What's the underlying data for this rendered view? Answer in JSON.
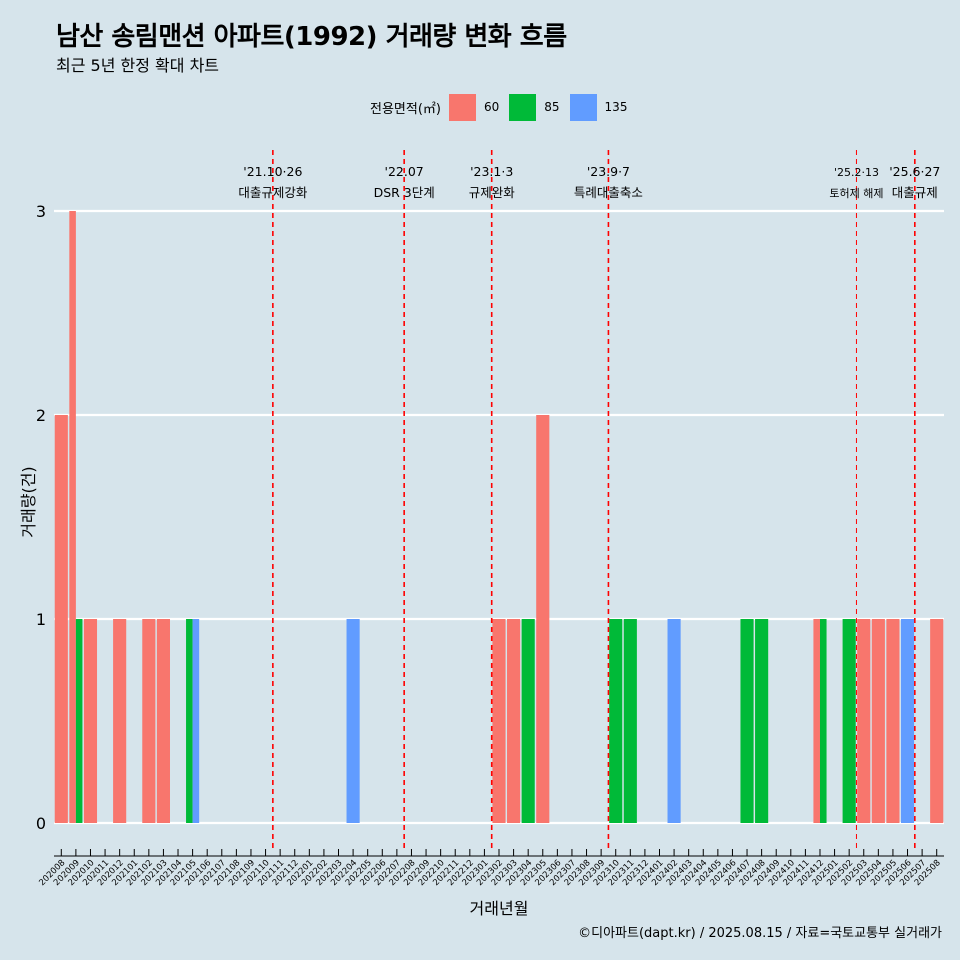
{
  "title": "남산 송림맨션 아파트(1992) 거래량 변화 흐름",
  "subtitle": "최근 5년 한정 확대 차트",
  "caption": "©디아파트(dapt.kr) / 2025.08.15 / 자료=국토교통부 실거래가",
  "legend": {
    "title": "전용면적(㎡)",
    "items": [
      {
        "label": "60",
        "color": "#f8766d"
      },
      {
        "label": "85",
        "color": "#00ba38"
      },
      {
        "label": "135",
        "color": "#619cff"
      }
    ]
  },
  "chart_data": {
    "type": "bar",
    "xlabel": "거래년월",
    "ylabel": "거래량(건)",
    "ylim": [
      0,
      3
    ],
    "yticks": [
      0,
      1,
      2,
      3
    ],
    "categories": [
      "202008",
      "202009",
      "202010",
      "202011",
      "202012",
      "202101",
      "202102",
      "202103",
      "202104",
      "202105",
      "202106",
      "202107",
      "202108",
      "202109",
      "202110",
      "202111",
      "202112",
      "202201",
      "202202",
      "202203",
      "202204",
      "202205",
      "202206",
      "202207",
      "202208",
      "202209",
      "202210",
      "202211",
      "202212",
      "202301",
      "202302",
      "202303",
      "202304",
      "202305",
      "202306",
      "202307",
      "202308",
      "202309",
      "202310",
      "202311",
      "202312",
      "202401",
      "202402",
      "202403",
      "202404",
      "202405",
      "202406",
      "202407",
      "202408",
      "202409",
      "202410",
      "202411",
      "202412",
      "202501",
      "202502",
      "202503",
      "202504",
      "202505",
      "202506",
      "202507",
      "202508"
    ],
    "series": [
      {
        "name": "60",
        "color": "#f8766d",
        "values": [
          2,
          3,
          1,
          0,
          1,
          0,
          1,
          1,
          0,
          0,
          0,
          0,
          0,
          0,
          0,
          0,
          0,
          0,
          0,
          0,
          0,
          0,
          0,
          0,
          0,
          0,
          0,
          0,
          0,
          0,
          1,
          1,
          0,
          2,
          0,
          0,
          0,
          0,
          0,
          0,
          0,
          0,
          0,
          0,
          0,
          0,
          0,
          0,
          0,
          0,
          0,
          0,
          1,
          0,
          0,
          1,
          1,
          1,
          0,
          0,
          1
        ]
      },
      {
        "name": "85",
        "color": "#00ba38",
        "values": [
          0,
          1,
          0,
          0,
          0,
          0,
          0,
          0,
          0,
          1,
          0,
          0,
          0,
          0,
          0,
          0,
          0,
          0,
          0,
          0,
          0,
          0,
          0,
          0,
          0,
          0,
          0,
          0,
          0,
          0,
          0,
          0,
          1,
          0,
          0,
          0,
          0,
          0,
          1,
          1,
          0,
          0,
          0,
          0,
          0,
          0,
          0,
          1,
          1,
          0,
          0,
          0,
          1,
          0,
          1,
          0,
          0,
          0,
          0,
          0,
          0
        ]
      },
      {
        "name": "135",
        "color": "#619cff",
        "values": [
          0,
          0,
          0,
          0,
          0,
          0,
          0,
          0,
          0,
          1,
          0,
          0,
          0,
          0,
          0,
          0,
          0,
          0,
          0,
          0,
          1,
          0,
          0,
          0,
          0,
          0,
          0,
          0,
          0,
          0,
          0,
          0,
          0,
          0,
          0,
          0,
          0,
          0,
          0,
          0,
          0,
          0,
          1,
          0,
          0,
          0,
          0,
          0,
          0,
          0,
          0,
          0,
          0,
          0,
          0,
          0,
          0,
          0,
          1,
          0,
          0
        ]
      }
    ],
    "annotations": [
      {
        "index": 14.5,
        "date": "'21.10·26",
        "label": "대출규제강화"
      },
      {
        "index": 23.5,
        "date": "'22.07",
        "label": "DSR 3단계"
      },
      {
        "index": 29.5,
        "date": "'23.1·3",
        "label": "규제완화"
      },
      {
        "index": 37.5,
        "date": "'23.9·7",
        "label": "특례대출축소"
      },
      {
        "index": 54.5,
        "date": "'25.2·13",
        "label": "토허제 해제"
      },
      {
        "index": 58.5,
        "date": "'25.6·27",
        "label": "대출규제"
      }
    ]
  }
}
